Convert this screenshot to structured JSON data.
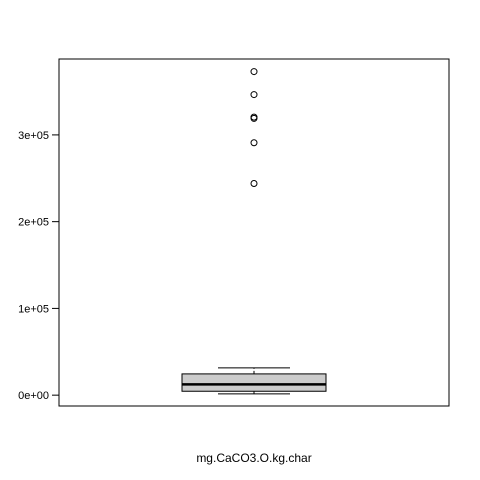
{
  "chart_data": {
    "type": "box",
    "title": "",
    "xlabel": "mg.CaCO3.O.kg.char",
    "ylabel": "",
    "yticks": [
      {
        "value": 0,
        "label": "0e+00"
      },
      {
        "value": 100000,
        "label": "1e+05"
      },
      {
        "value": 200000,
        "label": "2e+05"
      },
      {
        "value": 300000,
        "label": "3e+05"
      }
    ],
    "ylim": [
      -12500,
      387500
    ],
    "box": {
      "min": 1500,
      "q1": 4500,
      "median": 12500,
      "q3": 24500,
      "max": 31500,
      "outliers": [
        244000,
        291000,
        319000,
        320500,
        346500,
        373000
      ]
    },
    "grid": false,
    "colors": {
      "box_fill": "#cccccc",
      "stroke": "#000000"
    }
  }
}
